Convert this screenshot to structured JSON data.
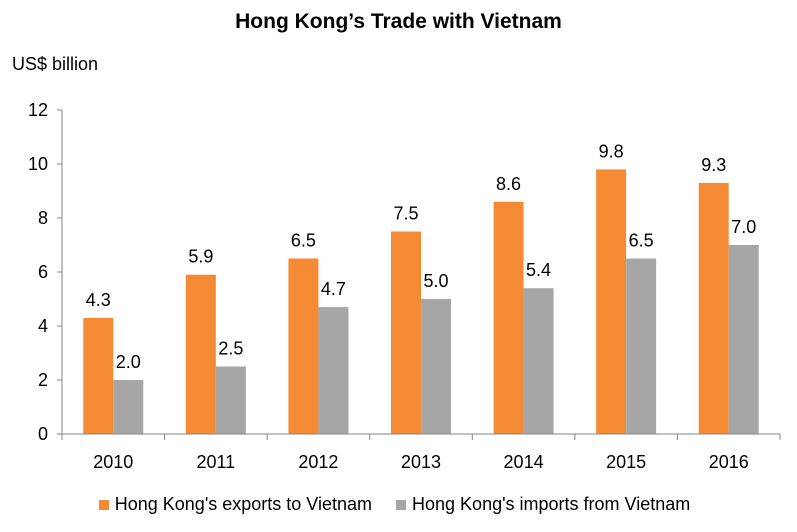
{
  "chart_data": {
    "type": "bar",
    "title": "Hong Kong’s Trade with Vietnam",
    "ylabel": "US$ billion",
    "xlabel": "",
    "categories": [
      "2010",
      "2011",
      "2012",
      "2013",
      "2014",
      "2015",
      "2016"
    ],
    "ylim": [
      0,
      12
    ],
    "yticks": [
      0,
      2,
      4,
      6,
      8,
      10,
      12
    ],
    "grid": false,
    "legend_position": "bottom",
    "series": [
      {
        "name": "Hong Kong's exports to Vietnam",
        "color": "#F58A35",
        "values": [
          4.3,
          5.9,
          6.5,
          7.5,
          8.6,
          9.8,
          9.3
        ],
        "labels": [
          "4.3",
          "5.9",
          "6.5",
          "7.5",
          "8.6",
          "9.8",
          "9.3"
        ]
      },
      {
        "name": "Hong Kong's imports from Vietnam",
        "color": "#A6A6A6",
        "values": [
          2.0,
          2.5,
          4.7,
          5.0,
          5.4,
          6.5,
          7.0
        ],
        "labels": [
          "2.0",
          "2.5",
          "4.7",
          "5.0",
          "5.4",
          "6.5",
          "7.0"
        ]
      }
    ]
  }
}
